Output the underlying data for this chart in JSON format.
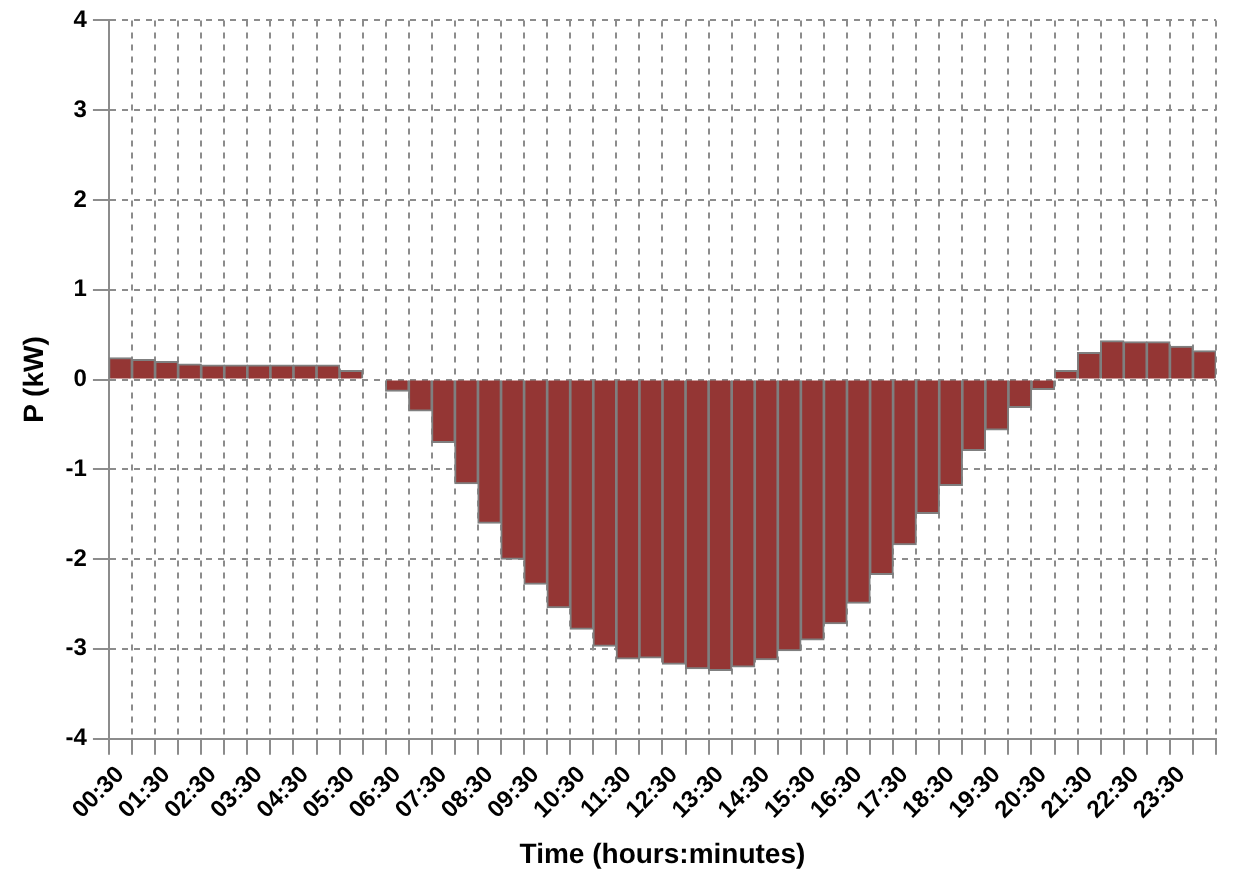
{
  "chart_data": {
    "type": "bar",
    "xlabel": "Time (hours:minutes)",
    "ylabel": "P (kW)",
    "categories": [
      "00:30",
      null,
      "01:30",
      null,
      "02:30",
      null,
      "03:30",
      null,
      "04:30",
      null,
      "05:30",
      null,
      "06:30",
      null,
      "07:30",
      null,
      "08:30",
      null,
      "09:30",
      null,
      "10:30",
      null,
      "11:30",
      null,
      "12:30",
      null,
      "13:30",
      null,
      "14:30",
      null,
      "15:30",
      null,
      "16:30",
      null,
      "17:30",
      null,
      "18:30",
      null,
      "19:30",
      null,
      "20:30",
      null,
      "21:30",
      null,
      "22:30",
      null,
      "23:30",
      null
    ],
    "series": [
      {
        "color": "#943634",
        "values": [
          0.24,
          0.22,
          0.2,
          0.17,
          0.16,
          0.16,
          0.16,
          0.16,
          0.16,
          0.16,
          0.1,
          0,
          -0.13,
          -0.35,
          -0.7,
          -1.16,
          -1.6,
          -2.0,
          -2.28,
          -2.54,
          -2.78,
          -2.97,
          -3.11,
          -3.1,
          -3.17,
          -3.22,
          -3.24,
          -3.2,
          -3.12,
          -3.02,
          -2.9,
          -2.72,
          -2.49,
          -2.17,
          -1.84,
          -1.49,
          -1.18,
          -0.79,
          -0.56,
          -0.31,
          -0.11,
          0.1,
          0.3,
          0.43,
          0.42,
          0.42,
          0.37,
          0.32
        ]
      }
    ],
    "ylim": [
      -4,
      4
    ],
    "yticks": [
      -4,
      -3,
      -2,
      -1,
      0,
      1,
      2,
      3,
      4
    ],
    "grid": true,
    "legend": false
  }
}
